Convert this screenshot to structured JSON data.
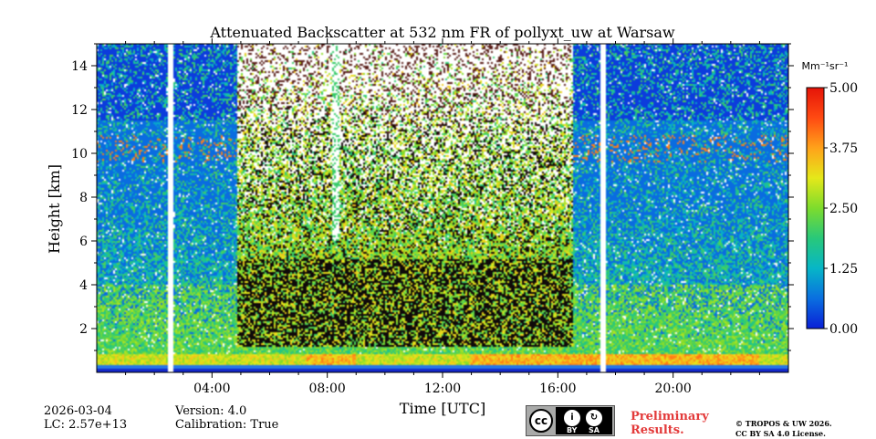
{
  "chart_data": {
    "type": "heatmap",
    "title": "Attenuated Backscatter at 532 nm FR of pollyxt_uw at Warsaw",
    "xlabel": "Time [UTC]",
    "ylabel": "Height [km]",
    "xlim_hours": [
      0,
      24
    ],
    "ylim_km": [
      0,
      15
    ],
    "x_ticks": [
      {
        "hour": 4,
        "label": "04:00"
      },
      {
        "hour": 8,
        "label": "08:00"
      },
      {
        "hour": 12,
        "label": "12:00"
      },
      {
        "hour": 16,
        "label": "16:00"
      },
      {
        "hour": 20,
        "label": "20:00"
      }
    ],
    "x_minor_ticks_hours": [
      1,
      2,
      3,
      5,
      6,
      7,
      9,
      10,
      11,
      13,
      14,
      15,
      17,
      18,
      19,
      21,
      22,
      23
    ],
    "y_ticks": [
      2,
      4,
      6,
      8,
      10,
      12,
      14
    ],
    "colorbar": {
      "label": "Mm⁻¹sr⁻¹",
      "min": 0.0,
      "max": 5.0,
      "ticks": [
        "0.00",
        "1.25",
        "2.50",
        "3.75",
        "5.00"
      ],
      "colormap": "jet",
      "colors": [
        "#0a1fd6",
        "#0a6fe0",
        "#07b6c7",
        "#28c87a",
        "#7ddc2d",
        "#e5e81a",
        "#ffa21a",
        "#ff4a12",
        "#e51408"
      ]
    },
    "features": {
      "missing_data_gaps_hours": [
        2.55,
        17.55
      ],
      "boundary_layer_top_km": 0.8,
      "high_signal_cloud_hours": [
        4.9,
        16.5
      ],
      "cloud_base_km": 5.2,
      "vertical_gap_column_hour": 8.3,
      "elevated_aerosol_layer_km": 10.2
    }
  },
  "footer": {
    "date": "2026-03-04",
    "lc": "LC: 2.57e+13",
    "version": "Version: 4.0",
    "calibration": "Calibration: True",
    "preliminary": "Preliminary\nResults.",
    "copyright": "© TROPOS & UW 2026.\nCC BY SA 4.0 License.",
    "cc_badge": {
      "by": "BY",
      "sa": "SA",
      "cc": "cc"
    }
  }
}
